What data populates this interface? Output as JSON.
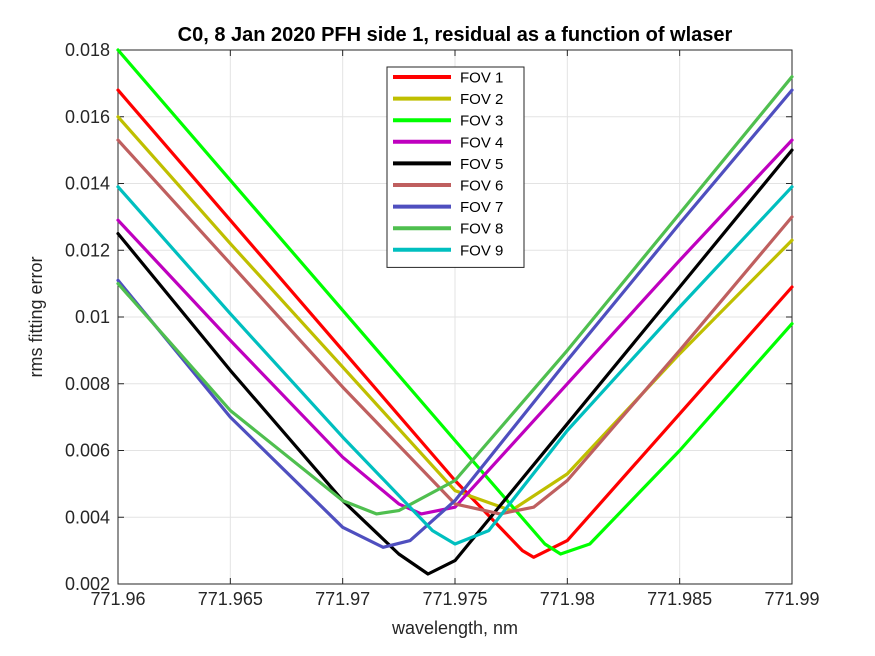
{
  "chart_data": {
    "type": "line",
    "title": "C0, 8 Jan 2020 PFH side 1, residual as a function of wlaser",
    "xlabel": "wavelength, nm",
    "ylabel": "rms fitting error",
    "xlim": [
      771.96,
      771.99
    ],
    "ylim": [
      0.002,
      0.018
    ],
    "xticks": [
      771.96,
      771.965,
      771.97,
      771.975,
      771.98,
      771.985,
      771.99
    ],
    "xtick_labels": [
      "771.96",
      "771.965",
      "771.97",
      "771.975",
      "771.98",
      "771.985",
      "771.99"
    ],
    "yticks": [
      0.002,
      0.004,
      0.006,
      0.008,
      0.01,
      0.012,
      0.014,
      0.016,
      0.018
    ],
    "ytick_labels": [
      "0.002",
      "0.004",
      "0.006",
      "0.008",
      "0.01",
      "0.012",
      "0.014",
      "0.016",
      "0.018"
    ],
    "grid": true,
    "legend_position": "top-center",
    "series": [
      {
        "name": "FOV 1",
        "color": "#ff0000",
        "x": [
          771.96,
          771.965,
          771.97,
          771.975,
          771.978,
          771.9785,
          771.98,
          771.985,
          771.99
        ],
        "y": [
          0.0168,
          0.0129,
          0.009,
          0.0051,
          0.003,
          0.0028,
          0.0033,
          0.0071,
          0.0109
        ]
      },
      {
        "name": "FOV 2",
        "color": "#bfbf00",
        "x": [
          771.96,
          771.965,
          771.97,
          771.975,
          771.9775,
          771.98,
          771.985,
          771.99
        ],
        "y": [
          0.016,
          0.0122,
          0.0085,
          0.0048,
          0.0042,
          0.0053,
          0.0089,
          0.0123
        ]
      },
      {
        "name": "FOV 3",
        "color": "#00ff00",
        "x": [
          771.96,
          771.965,
          771.97,
          771.975,
          771.979,
          771.9797,
          771.981,
          771.985,
          771.99
        ],
        "y": [
          0.018,
          0.0141,
          0.0102,
          0.0063,
          0.0032,
          0.0029,
          0.0032,
          0.006,
          0.0098
        ]
      },
      {
        "name": "FOV 4",
        "color": "#bf00bf",
        "x": [
          771.96,
          771.965,
          771.97,
          771.9725,
          771.9735,
          771.975,
          771.98,
          771.985,
          771.99
        ],
        "y": [
          0.0129,
          0.0093,
          0.0058,
          0.0044,
          0.0041,
          0.0043,
          0.008,
          0.0117,
          0.0153
        ]
      },
      {
        "name": "FOV 5",
        "color": "#000000",
        "x": [
          771.96,
          771.965,
          771.97,
          771.9725,
          771.9738,
          771.975,
          771.98,
          771.985,
          771.99
        ],
        "y": [
          0.0125,
          0.0084,
          0.0045,
          0.0029,
          0.0023,
          0.0027,
          0.0068,
          0.0109,
          0.015
        ]
      },
      {
        "name": "FOV 6",
        "color": "#bf5f5f",
        "x": [
          771.96,
          771.965,
          771.97,
          771.975,
          771.977,
          771.9785,
          771.98,
          771.985,
          771.99
        ],
        "y": [
          0.0153,
          0.0116,
          0.0079,
          0.0044,
          0.0041,
          0.0043,
          0.0051,
          0.009,
          0.013
        ]
      },
      {
        "name": "FOV 7",
        "color": "#4f4fbf",
        "x": [
          771.96,
          771.965,
          771.97,
          771.9718,
          771.973,
          771.975,
          771.98,
          771.985,
          771.99
        ],
        "y": [
          0.0111,
          0.007,
          0.0037,
          0.0031,
          0.0033,
          0.0045,
          0.0087,
          0.0128,
          0.0168
        ]
      },
      {
        "name": "FOV 8",
        "color": "#4fbf4f",
        "x": [
          771.96,
          771.965,
          771.97,
          771.9715,
          771.9725,
          771.975,
          771.98,
          771.985,
          771.99
        ],
        "y": [
          0.011,
          0.0072,
          0.0045,
          0.0041,
          0.0042,
          0.0051,
          0.009,
          0.0131,
          0.0172
        ]
      },
      {
        "name": "FOV 9",
        "color": "#00bfbf",
        "x": [
          771.96,
          771.965,
          771.97,
          771.974,
          771.975,
          771.9765,
          771.98,
          771.985,
          771.99
        ],
        "y": [
          0.0139,
          0.0101,
          0.0064,
          0.0036,
          0.0032,
          0.0036,
          0.0066,
          0.0103,
          0.0139
        ]
      }
    ]
  }
}
